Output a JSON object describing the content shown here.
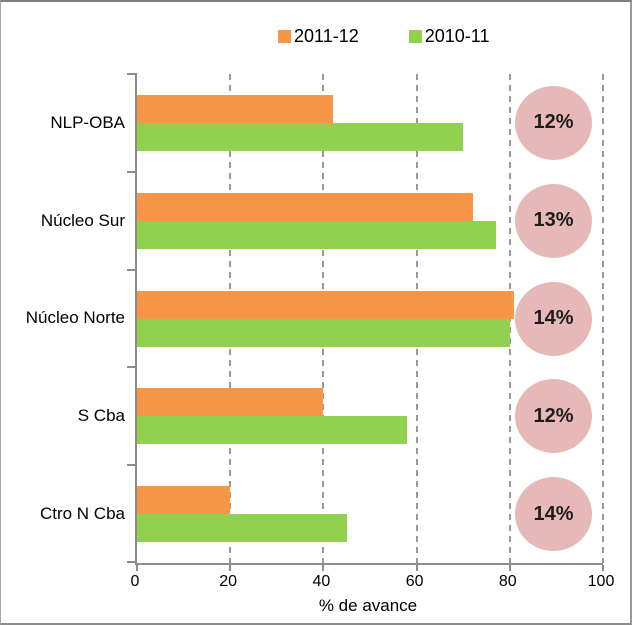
{
  "chart_data": {
    "type": "bar",
    "orientation": "horizontal",
    "title": "",
    "xlabel": "% de avance",
    "xlim": [
      0,
      100
    ],
    "xticks": [
      0,
      20,
      40,
      60,
      80,
      100
    ],
    "grid": "vertical-dashed",
    "legend_position": "top",
    "categories": [
      "NLP-OBA",
      "Núcleo Sur",
      "Núcleo Norte",
      "S Cba",
      "Ctro N Cba"
    ],
    "series": [
      {
        "name": "2011-12",
        "color": "#F79646",
        "values": [
          42,
          72,
          81,
          40,
          20
        ]
      },
      {
        "name": "2010-11",
        "color": "#92D050",
        "values": [
          70,
          77,
          80,
          58,
          45
        ]
      }
    ],
    "badges": {
      "shape": "circle",
      "color": "#E6B9B8",
      "values": [
        "12%",
        "13%",
        "14%",
        "12%",
        "14%"
      ]
    }
  },
  "colors": {
    "grid": "#999999",
    "axis": "#8c8c8c",
    "badge_text": "#1d1d1d",
    "frame_border": "#7f7f7f"
  }
}
